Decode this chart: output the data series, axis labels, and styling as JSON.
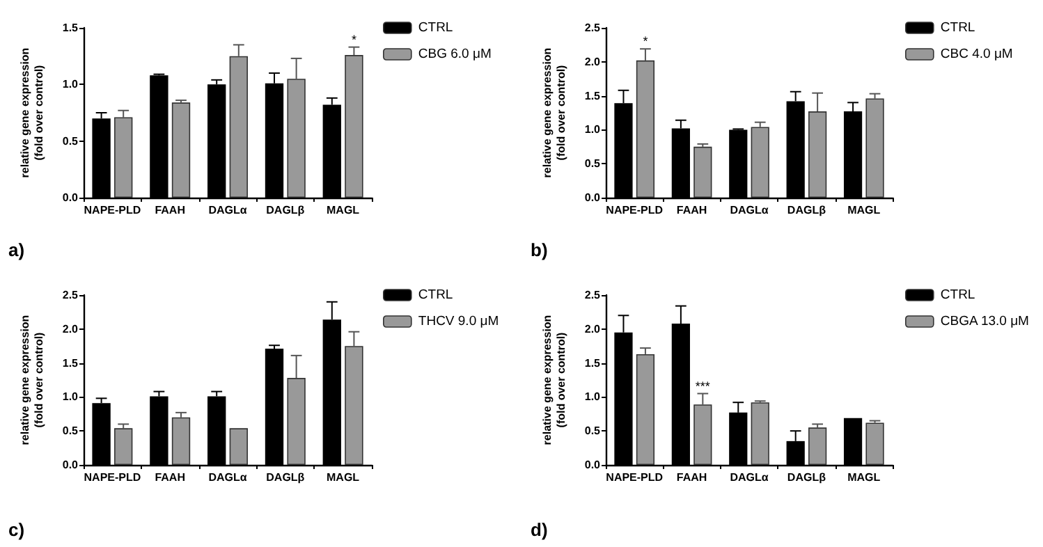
{
  "chart_data": [
    {
      "type": "bar",
      "ylabel": "relative gene expression\n(fold over control)",
      "categories": [
        "NAPE-PLD",
        "FAAH",
        "DAGLα",
        "DAGLβ",
        "MAGL"
      ],
      "ylim": [
        0,
        1.5
      ],
      "yticks": [
        {
          "value": 0,
          "label": "0.0"
        },
        {
          "value": 0.5,
          "label": "0.5"
        },
        {
          "value": 1,
          "label": "1.0"
        },
        {
          "value": 1.5,
          "label": "1.5"
        }
      ],
      "grid": false,
      "legend": "right",
      "series": [
        {
          "name": "CTRL",
          "color": "#000000",
          "values": [
            0.7,
            1.08,
            1.0,
            1.01,
            0.82
          ],
          "errors": [
            [
              0.7,
              0.75
            ],
            [
              1.08,
              1.09
            ],
            [
              1.0,
              1.04
            ],
            [
              1.01,
              1.1
            ],
            [
              0.82,
              0.88
            ]
          ]
        },
        {
          "name": "CBG 6.0 μM",
          "color": "#999999",
          "values": [
            0.71,
            0.84,
            1.25,
            1.05,
            1.26
          ],
          "errors": [
            [
              0.71,
              0.77
            ],
            [
              0.84,
              0.86
            ],
            [
              1.25,
              1.35
            ],
            [
              1.05,
              1.23
            ],
            [
              1.26,
              1.33
            ]
          ]
        }
      ],
      "annotations": [
        {
          "text": "*",
          "x": "MAGL",
          "y": 1.33
        },
        "a)"
      ]
    },
    {
      "type": "bar",
      "ylabel": "relative gene expression\n(fold over control)",
      "categories": [
        "NAPE-PLD",
        "FAAH",
        "DAGLα",
        "DAGLβ",
        "MAGL"
      ],
      "ylim": [
        0,
        2.5
      ],
      "yticks": [
        {
          "value": 0,
          "label": "0.0"
        },
        {
          "value": 0.5,
          "label": "0.5"
        },
        {
          "value": 1,
          "label": "1.0"
        },
        {
          "value": 1.5,
          "label": "1.5"
        },
        {
          "value": 2,
          "label": "2.0"
        },
        {
          "value": 2.5,
          "label": "2.5"
        }
      ],
      "grid": false,
      "legend": "right",
      "series": [
        {
          "name": "CTRL",
          "color": "#000000",
          "values": [
            1.39,
            1.02,
            1.0,
            1.42,
            1.27
          ],
          "errors": [
            [
              1.39,
              1.58
            ],
            [
              1.02,
              1.14
            ],
            [
              1.0,
              1.01
            ],
            [
              1.42,
              1.56
            ],
            [
              1.27,
              1.4
            ]
          ]
        },
        {
          "name": "CBC 4.0 μM",
          "color": "#999999",
          "values": [
            2.02,
            0.75,
            1.04,
            1.27,
            1.46
          ],
          "errors": [
            [
              2.02,
              2.19
            ],
            [
              0.75,
              0.79
            ],
            [
              1.04,
              1.11
            ],
            [
              1.27,
              1.54
            ],
            [
              1.46,
              1.53
            ]
          ]
        }
      ],
      "annotations": [
        {
          "text": "*",
          "x": "NAPE-PLD",
          "y": 2.19
        },
        "b)"
      ]
    },
    {
      "type": "bar",
      "ylabel": "relative gene expression\n(fold over control)",
      "categories": [
        "NAPE-PLD",
        "FAAH",
        "DAGLα",
        "DAGLβ",
        "MAGL"
      ],
      "ylim": [
        0,
        2.5
      ],
      "yticks": [
        {
          "value": 0,
          "label": "0.0"
        },
        {
          "value": 0.5,
          "label": "0.5"
        },
        {
          "value": 1,
          "label": "1.0"
        },
        {
          "value": 1.5,
          "label": "1.5"
        },
        {
          "value": 2,
          "label": "2.0"
        },
        {
          "value": 2.5,
          "label": "2.5"
        }
      ],
      "grid": false,
      "legend": "right",
      "series": [
        {
          "name": "CTRL",
          "color": "#000000",
          "values": [
            0.91,
            1.01,
            1.01,
            1.71,
            2.14
          ],
          "errors": [
            [
              0.91,
              0.98
            ],
            [
              1.01,
              1.08
            ],
            [
              1.01,
              1.08
            ],
            [
              1.71,
              1.76
            ],
            [
              2.14,
              2.4
            ]
          ]
        },
        {
          "name": "THCV 9.0 μM",
          "color": "#999999",
          "values": [
            0.54,
            0.7,
            0.54,
            1.28,
            1.75
          ],
          "errors": [
            [
              0.54,
              0.6
            ],
            [
              0.7,
              0.77
            ],
            null,
            [
              1.28,
              1.61
            ],
            [
              1.75,
              1.96
            ]
          ]
        }
      ],
      "annotations": [
        "c)"
      ]
    },
    {
      "type": "bar",
      "ylabel": "relative gene expression\n(fold over control)",
      "categories": [
        "NAPE-PLD",
        "FAAH",
        "DAGLα",
        "DAGLβ",
        "MAGL"
      ],
      "ylim": [
        0,
        2.5
      ],
      "yticks": [
        {
          "value": 0,
          "label": "0.0"
        },
        {
          "value": 0.5,
          "label": "0.5"
        },
        {
          "value": 1,
          "label": "1.0"
        },
        {
          "value": 1.5,
          "label": "1.5"
        },
        {
          "value": 2,
          "label": "2.0"
        },
        {
          "value": 2.5,
          "label": "2.5"
        }
      ],
      "grid": false,
      "legend": "right",
      "series": [
        {
          "name": "CTRL",
          "color": "#000000",
          "values": [
            1.95,
            2.08,
            0.77,
            0.35,
            0.69
          ],
          "errors": [
            [
              1.95,
              2.2
            ],
            [
              2.08,
              2.34
            ],
            [
              0.77,
              0.92
            ],
            [
              0.35,
              0.5
            ],
            null
          ]
        },
        {
          "name": "CBGA 13.0 μM",
          "color": "#999999",
          "values": [
            1.63,
            0.89,
            0.92,
            0.55,
            0.62
          ],
          "errors": [
            [
              1.63,
              1.72
            ],
            [
              0.89,
              1.05
            ],
            [
              0.92,
              0.94
            ],
            [
              0.55,
              0.6
            ],
            [
              0.62,
              0.65
            ]
          ]
        }
      ],
      "annotations": [
        {
          "text": "***",
          "x": "FAAH",
          "y": 1.05
        },
        "d)"
      ]
    }
  ]
}
